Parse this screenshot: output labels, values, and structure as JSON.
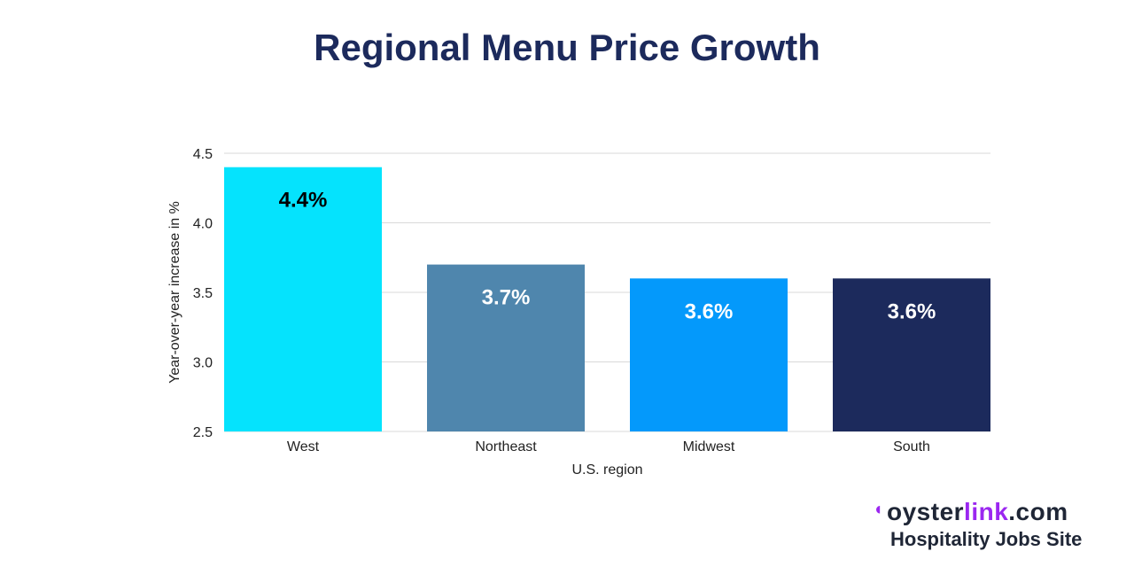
{
  "chart_data": {
    "type": "bar",
    "title": "Regional Menu Price Growth",
    "xlabel": "U.S. region",
    "ylabel": "Year-over-year increase in %",
    "categories": [
      "West",
      "Northeast",
      "Midwest",
      "South"
    ],
    "values": [
      4.4,
      3.7,
      3.6,
      3.6
    ],
    "data_labels": [
      "4.4%",
      "3.7%",
      "3.6%",
      "3.6%"
    ],
    "colors": [
      "#05e3fd",
      "#4f86ad",
      "#0499fb",
      "#1c2a5c"
    ],
    "label_colors": [
      "#000000",
      "#ffffff",
      "#ffffff",
      "#ffffff"
    ],
    "ylim": [
      2.5,
      4.5
    ],
    "yticks": [
      "2.5",
      "3.0",
      "3.5",
      "4.0",
      "4.5"
    ],
    "grid": true,
    "legend": "none"
  },
  "branding": {
    "logo_prefix": "oyster",
    "logo_accent": "link",
    "logo_suffix": ".com",
    "tagline": "Hospitality Jobs Site"
  }
}
